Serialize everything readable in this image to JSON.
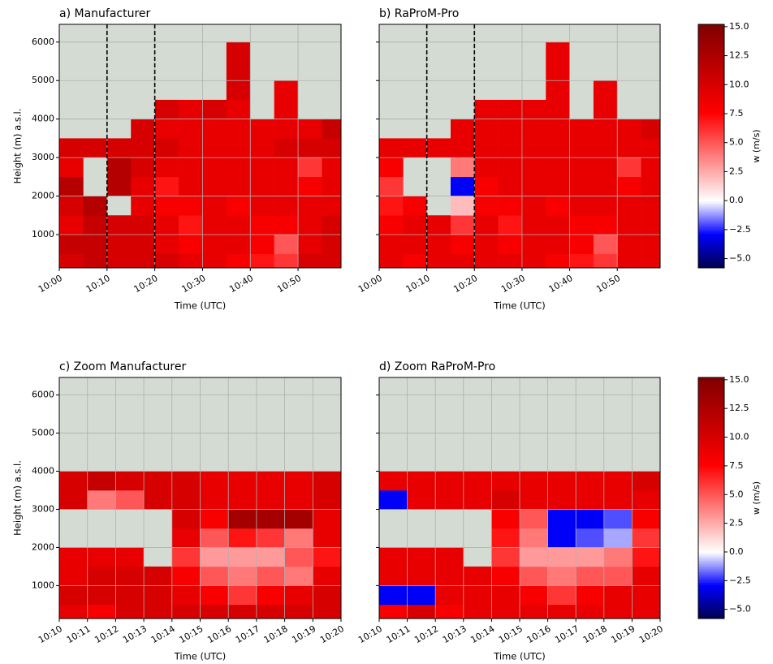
{
  "chart_data": [
    {
      "type": "heatmap",
      "title": "a) Manufacturer",
      "xlabel": "Time (UTC)",
      "ylabel": "Height (m) a.s.l.",
      "ytick_labels": true,
      "xlim": [
        600,
        659
      ],
      "ylim": [
        135,
        6460
      ],
      "xticks": [
        {
          "value": 600,
          "label": "10:00"
        },
        {
          "value": 610,
          "label": "10:10"
        },
        {
          "value": 620,
          "label": "10:20"
        },
        {
          "value": 630,
          "label": "10:30"
        },
        {
          "value": 640,
          "label": "10:40"
        },
        {
          "value": 650,
          "label": "10:50"
        }
      ],
      "yticks": [
        1000,
        2000,
        3000,
        4000,
        5000,
        6000
      ],
      "grid": true,
      "missing_color": "#d4dbd3",
      "colormap": "seismic",
      "vlines": [
        610,
        620
      ],
      "vline_color": "#000000",
      "x_edges": [
        600,
        605,
        610,
        615,
        620,
        625,
        630,
        635,
        640,
        645,
        650,
        655,
        659
      ],
      "y_edges": [
        135,
        500,
        1000,
        1500,
        2000,
        2500,
        3000,
        3500,
        4000,
        4500,
        5000,
        5500,
        6000
      ],
      "z": [
        [
          10,
          11,
          10,
          10,
          10,
          9,
          9,
          8,
          7,
          6,
          10,
          10
        ],
        [
          11,
          11,
          10,
          10,
          9,
          8,
          9,
          9,
          8,
          5,
          9,
          10
        ],
        [
          9,
          11,
          10,
          10,
          9,
          7,
          9,
          9,
          8,
          8,
          9,
          10
        ],
        [
          10,
          12,
          null,
          9,
          8,
          8,
          9,
          8,
          9,
          9,
          9,
          9
        ],
        [
          12,
          null,
          12,
          9,
          7,
          9,
          9,
          9,
          9,
          9,
          8,
          9
        ],
        [
          9,
          null,
          12,
          10,
          9,
          9,
          9,
          9,
          9,
          9,
          6,
          9
        ],
        [
          10,
          10,
          10,
          10,
          10,
          9,
          9,
          9,
          9,
          10,
          10,
          10
        ],
        [
          null,
          null,
          null,
          10,
          9,
          9,
          9,
          9,
          9,
          9,
          9,
          11
        ],
        [
          null,
          null,
          null,
          null,
          10,
          9,
          10,
          9,
          null,
          9,
          null,
          null
        ],
        [
          null,
          null,
          null,
          null,
          null,
          null,
          null,
          10,
          null,
          9,
          null,
          null
        ],
        [
          null,
          null,
          null,
          null,
          null,
          null,
          null,
          10,
          null,
          null,
          null,
          null
        ],
        [
          null,
          null,
          null,
          null,
          null,
          null,
          null,
          10,
          null,
          null,
          null,
          null
        ]
      ]
    },
    {
      "type": "heatmap",
      "title": "b) RaProM-Pro",
      "xlabel": "Time (UTC)",
      "ytick_labels": false,
      "xlim": [
        600,
        659
      ],
      "ylim": [
        135,
        6460
      ],
      "xticks": [
        {
          "value": 600,
          "label": "10:00"
        },
        {
          "value": 610,
          "label": "10:10"
        },
        {
          "value": 620,
          "label": "10:20"
        },
        {
          "value": 630,
          "label": "10:30"
        },
        {
          "value": 640,
          "label": "10:40"
        },
        {
          "value": 650,
          "label": "10:50"
        }
      ],
      "yticks": [
        1000,
        2000,
        3000,
        4000,
        5000,
        6000
      ],
      "grid": true,
      "missing_color": "#d4dbd3",
      "colormap": "seismic",
      "vlines": [
        610,
        620
      ],
      "vline_color": "#000000",
      "x_edges": [
        600,
        605,
        610,
        615,
        620,
        625,
        630,
        635,
        640,
        645,
        650,
        655,
        659
      ],
      "y_edges": [
        135,
        500,
        1000,
        1500,
        2000,
        2500,
        3000,
        3500,
        4000,
        4500,
        5000,
        5500,
        6000
      ],
      "z": [
        [
          9,
          8,
          9,
          9,
          9,
          9,
          9,
          8,
          7,
          6,
          9,
          9
        ],
        [
          9,
          9,
          9,
          8,
          9,
          8,
          9,
          9,
          8,
          5,
          9,
          9
        ],
        [
          8,
          9,
          9,
          6,
          9,
          7,
          9,
          9,
          8,
          8,
          9,
          9
        ],
        [
          7,
          8,
          null,
          2,
          8,
          8,
          9,
          8,
          9,
          9,
          9,
          9
        ],
        [
          6,
          null,
          null,
          -3,
          8,
          9,
          9,
          9,
          9,
          9,
          8,
          9
        ],
        [
          8,
          null,
          null,
          4,
          9,
          9,
          9,
          9,
          9,
          9,
          6,
          9
        ],
        [
          9,
          9,
          9,
          9,
          9,
          9,
          9,
          9,
          9,
          9,
          9,
          9
        ],
        [
          null,
          null,
          null,
          9,
          9,
          9,
          9,
          9,
          9,
          9,
          9,
          10
        ],
        [
          null,
          null,
          null,
          null,
          9,
          9,
          9,
          9,
          null,
          9,
          null,
          null
        ],
        [
          null,
          null,
          null,
          null,
          null,
          null,
          null,
          9,
          null,
          9,
          null,
          null
        ],
        [
          null,
          null,
          null,
          null,
          null,
          null,
          null,
          9,
          null,
          null,
          null,
          null
        ],
        [
          null,
          null,
          null,
          null,
          null,
          null,
          null,
          9,
          null,
          null,
          null,
          null
        ]
      ],
      "colorbar": {
        "label": "w (m/s)",
        "clim": [
          -5.8,
          15.2
        ],
        "ticks": [
          {
            "value": 15,
            "label": "15.0"
          },
          12.5,
          {
            "value": 10,
            "label": "10.0"
          },
          7.5,
          {
            "value": 5,
            "label": "5.0"
          },
          2.5,
          {
            "value": 0,
            "label": "0.0"
          },
          {
            "value": -2.5,
            "label": "−2.5"
          },
          {
            "value": -5,
            "label": "−5.0"
          }
        ]
      }
    },
    {
      "type": "heatmap",
      "title": "c) Zoom Manufacturer",
      "xlabel": "Time (UTC)",
      "ylabel": "Height (m) a.s.l.",
      "ytick_labels": true,
      "xlim": [
        610,
        620
      ],
      "ylim": [
        135,
        6460
      ],
      "xticks": [
        {
          "value": 610,
          "label": "10:10"
        },
        {
          "value": 611,
          "label": "10:11"
        },
        {
          "value": 612,
          "label": "10:12"
        },
        {
          "value": 613,
          "label": "10:13"
        },
        {
          "value": 614,
          "label": "10:14"
        },
        {
          "value": 615,
          "label": "10:15"
        },
        {
          "value": 616,
          "label": "10:16"
        },
        {
          "value": 617,
          "label": "10:17"
        },
        {
          "value": 618,
          "label": "10:18"
        },
        {
          "value": 619,
          "label": "10:19"
        },
        {
          "value": 620,
          "label": "10:20"
        }
      ],
      "yticks": [
        1000,
        2000,
        3000,
        4000,
        5000,
        6000
      ],
      "grid": true,
      "missing_color": "#d4dbd3",
      "colormap": "seismic",
      "x_edges": [
        610,
        611,
        612,
        613,
        614,
        615,
        616,
        617,
        618,
        619,
        620
      ],
      "y_edges": [
        135,
        500,
        1000,
        1500,
        2000,
        2500,
        3000,
        3500,
        4000
      ],
      "z": [
        [
          9,
          8,
          10,
          10,
          10,
          10,
          10,
          10,
          10,
          10
        ],
        [
          10,
          10,
          10,
          10,
          9,
          8,
          6,
          8,
          9,
          10
        ],
        [
          9,
          10,
          10,
          10,
          8,
          5,
          4,
          5,
          4,
          9
        ],
        [
          9,
          9,
          9,
          null,
          6,
          3,
          3,
          3,
          5,
          7
        ],
        [
          null,
          null,
          null,
          null,
          9,
          5,
          7,
          6,
          4,
          9
        ],
        [
          null,
          null,
          null,
          null,
          10,
          8,
          13,
          13,
          13,
          9
        ],
        [
          10,
          4,
          5,
          10,
          10,
          9,
          9,
          9,
          9,
          10
        ],
        [
          10,
          11,
          10,
          10,
          10,
          9,
          9,
          9,
          9,
          10
        ]
      ]
    },
    {
      "type": "heatmap",
      "title": "d) Zoom RaProM-Pro",
      "xlabel": "Time (UTC)",
      "ytick_labels": false,
      "xlim": [
        610,
        620
      ],
      "ylim": [
        135,
        6460
      ],
      "xticks": [
        {
          "value": 610,
          "label": "10:10"
        },
        {
          "value": 611,
          "label": "10:11"
        },
        {
          "value": 612,
          "label": "10:12"
        },
        {
          "value": 613,
          "label": "10:13"
        },
        {
          "value": 614,
          "label": "10:14"
        },
        {
          "value": 615,
          "label": "10:15"
        },
        {
          "value": 616,
          "label": "10:16"
        },
        {
          "value": 617,
          "label": "10:17"
        },
        {
          "value": 618,
          "label": "10:18"
        },
        {
          "value": 619,
          "label": "10:19"
        },
        {
          "value": 620,
          "label": "10:20"
        }
      ],
      "yticks": [
        1000,
        2000,
        3000,
        4000,
        5000,
        6000
      ],
      "grid": true,
      "missing_color": "#d4dbd3",
      "colormap": "seismic",
      "x_edges": [
        610,
        611,
        612,
        613,
        614,
        615,
        616,
        617,
        618,
        619,
        620
      ],
      "y_edges": [
        135,
        500,
        1000,
        1500,
        2000,
        2500,
        3000,
        3500,
        4000
      ],
      "z": [
        [
          8,
          10,
          8,
          9,
          9,
          9,
          9,
          9,
          9,
          9
        ],
        [
          -3,
          -3,
          9,
          9,
          9,
          8,
          6,
          8,
          9,
          9
        ],
        [
          9,
          9,
          9,
          9,
          8,
          5,
          4,
          5,
          5,
          9
        ],
        [
          9,
          9,
          9,
          null,
          6,
          3,
          3,
          3,
          4,
          7
        ],
        [
          null,
          null,
          null,
          null,
          7,
          4,
          -3,
          -2,
          -1,
          6
        ],
        [
          null,
          null,
          null,
          null,
          8,
          5,
          -3,
          -3,
          -2,
          8
        ],
        [
          -3,
          9,
          9,
          9,
          10,
          9,
          9,
          9,
          9,
          9
        ],
        [
          9,
          9,
          9,
          9,
          9,
          9,
          9,
          9,
          9,
          10
        ]
      ],
      "colorbar": {
        "label": "w (m/s)",
        "clim": [
          -5.8,
          15.2
        ],
        "ticks": [
          {
            "value": 15,
            "label": "15.0"
          },
          12.5,
          {
            "value": 10,
            "label": "10.0"
          },
          7.5,
          {
            "value": 5,
            "label": "5.0"
          },
          2.5,
          {
            "value": 0,
            "label": "0.0"
          },
          {
            "value": -2.5,
            "label": "−2.5"
          },
          {
            "value": -5,
            "label": "−5.0"
          }
        ]
      }
    }
  ]
}
